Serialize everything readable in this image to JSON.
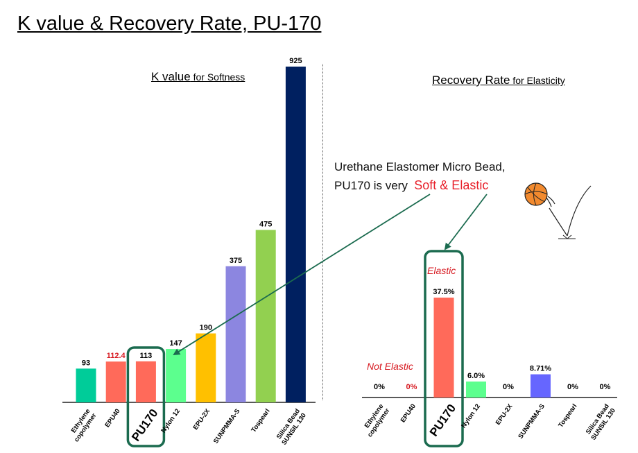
{
  "title": "K value & Recovery Rate, PU-170",
  "k_heading": {
    "main": "K value",
    "sub": " for Softness"
  },
  "r_heading": {
    "main": "Recovery Rate",
    "sub": " for Elasticity"
  },
  "callout": {
    "line1": "Urethane Elastomer Micro Bead,",
    "line2_prefix": "PU170 is very",
    "line2_highlight": "Soft & Elastic"
  },
  "notes": {
    "elastic": "Elastic",
    "not_elastic": "Not Elastic"
  },
  "chart_data": [
    {
      "type": "bar",
      "title": "K value for Softness",
      "categories": [
        "Ethylene copolymer",
        "EPU40",
        "PU170",
        "Nylon 12",
        "EPU-2X",
        "SUNPMMA-S",
        "Tospearl",
        "Silica Bead SUNSIL 130"
      ],
      "tick_lines": [
        [
          "Ethylene",
          "copolymer"
        ],
        [
          "EPU40"
        ],
        [
          "PU170"
        ],
        [
          "Nylon 12"
        ],
        [
          "EPU-2X"
        ],
        [
          "SUNPMMA-S"
        ],
        [
          "Tospearl"
        ],
        [
          "Silica Bead",
          "SUNSIL 130"
        ]
      ],
      "values": [
        93,
        112.4,
        113,
        147,
        190,
        375,
        475,
        925
      ],
      "labels": [
        "93",
        "112.4",
        "113",
        "147",
        "190",
        "375",
        "475",
        "925"
      ],
      "colors": [
        "#00cc99",
        "#ff6a5a",
        "#ff6a5a",
        "#5cff8e",
        "#ffc000",
        "#8c86e0",
        "#92d050",
        "#002060"
      ],
      "label_colors": [
        "#000000",
        "#d71920",
        "#000000",
        "#000000",
        "#000000",
        "#000000",
        "#000000",
        "#000000"
      ],
      "highlight": "PU170",
      "ylim": [
        0,
        925
      ]
    },
    {
      "type": "bar",
      "title": "Recovery Rate for Elasticity",
      "categories": [
        "Ethylene copolymer",
        "EPU40",
        "PU170",
        "Nylon 12",
        "EPU-2X",
        "SUNPMMA-S",
        "Tospearl",
        "Silica Bead SUNSIL 130"
      ],
      "tick_lines": [
        [
          "Ethylene",
          "copolymer"
        ],
        [
          "EPU40"
        ],
        [
          "PU170"
        ],
        [
          "Nylon 12"
        ],
        [
          "EPU-2X"
        ],
        [
          "SUNPMMA-S"
        ],
        [
          "Tospearl"
        ],
        [
          "Silica Bead",
          "SUNSIL 130"
        ]
      ],
      "values": [
        0,
        0,
        37.5,
        6.0,
        0,
        8.71,
        0,
        0
      ],
      "labels": [
        "0%",
        "0%",
        "37.5%",
        "6.0%",
        "0%",
        "8.71%",
        "0%",
        "0%"
      ],
      "colors": [
        "#00cc99",
        "#ff6a5a",
        "#ff6a5a",
        "#5cff8e",
        "#ffc000",
        "#6666ff",
        "#92d050",
        "#002060"
      ],
      "label_colors": [
        "#000000",
        "#d71920",
        "#000000",
        "#000000",
        "#000000",
        "#000000",
        "#000000",
        "#000000"
      ],
      "highlight": "PU170",
      "ylim": [
        0,
        37.5
      ]
    }
  ],
  "colors": {
    "highlight_box": "#1b6b4f",
    "arrow": "#1b6b4f",
    "ball": "#f28a2e"
  },
  "icons": {
    "bouncing_ball": "basketball-icon"
  }
}
